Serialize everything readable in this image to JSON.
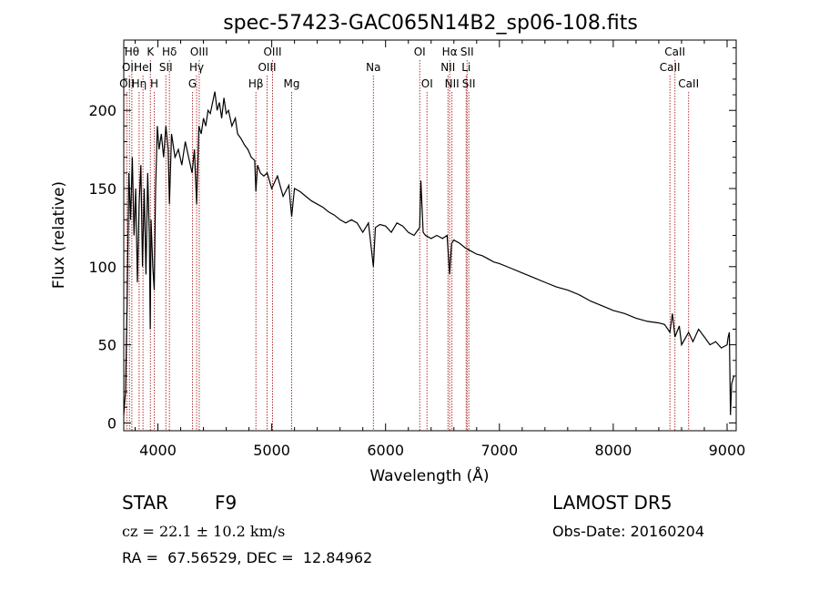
{
  "chart_data": {
    "type": "line",
    "title": "spec-57423-GAC065N14B2_sp06-108.fits",
    "xlabel": "Wavelength (Å)",
    "ylabel": "Flux (relative)",
    "xlim": [
      3700,
      9080
    ],
    "ylim": [
      -5,
      245
    ],
    "xticks": [
      4000,
      5000,
      6000,
      7000,
      8000,
      9000
    ],
    "yticks": [
      0,
      50,
      100,
      150,
      200
    ],
    "grid": false,
    "line_color": "#000000",
    "marker_line_color": "#b03030",
    "series": [
      {
        "x": [
          3700,
          3715,
          3730,
          3745,
          3760,
          3775,
          3790,
          3805,
          3820,
          3835,
          3850,
          3865,
          3880,
          3895,
          3910,
          3925,
          3933,
          3940,
          3955,
          3968,
          3980,
          3995,
          4010,
          4030,
          4050,
          4070,
          4090,
          4101,
          4120,
          4150,
          4180,
          4210,
          4240,
          4270,
          4300,
          4320,
          4340,
          4360,
          4380,
          4400,
          4420,
          4440,
          4460,
          4480,
          4500,
          4520,
          4540,
          4560,
          4580,
          4600,
          4620,
          4650,
          4680,
          4700,
          4730,
          4760,
          4790,
          4820,
          4850,
          4861,
          4875,
          4900,
          4930,
          4960,
          5000,
          5050,
          5100,
          5150,
          5175,
          5200,
          5250,
          5300,
          5350,
          5400,
          5450,
          5500,
          5550,
          5600,
          5650,
          5700,
          5750,
          5800,
          5850,
          5893,
          5910,
          5950,
          6000,
          6050,
          6100,
          6150,
          6200,
          6250,
          6300,
          6310,
          6330,
          6350,
          6400,
          6450,
          6500,
          6540,
          6563,
          6580,
          6600,
          6650,
          6700,
          6750,
          6800,
          6850,
          6900,
          6950,
          7000,
          7100,
          7200,
          7300,
          7400,
          7500,
          7600,
          7700,
          7800,
          7900,
          8000,
          8100,
          8200,
          8300,
          8400,
          8450,
          8498,
          8520,
          8542,
          8580,
          8600,
          8662,
          8700,
          8750,
          8800,
          8850,
          8900,
          8950,
          9000,
          9010,
          9020,
          9030,
          9040,
          9060
        ],
        "y": [
          5,
          20,
          80,
          160,
          130,
          170,
          120,
          150,
          90,
          140,
          165,
          100,
          150,
          95,
          160,
          120,
          60,
          130,
          100,
          85,
          150,
          190,
          175,
          185,
          170,
          190,
          175,
          140,
          185,
          170,
          175,
          165,
          180,
          170,
          160,
          175,
          140,
          190,
          185,
          195,
          190,
          200,
          198,
          205,
          212,
          200,
          205,
          195,
          208,
          198,
          200,
          190,
          195,
          185,
          182,
          178,
          175,
          170,
          168,
          148,
          165,
          160,
          158,
          160,
          150,
          158,
          145,
          152,
          132,
          150,
          148,
          145,
          142,
          140,
          138,
          135,
          133,
          130,
          128,
          130,
          128,
          122,
          128,
          100,
          125,
          127,
          126,
          122,
          128,
          126,
          122,
          120,
          125,
          155,
          122,
          120,
          118,
          120,
          118,
          120,
          95,
          115,
          117,
          115,
          112,
          110,
          108,
          107,
          105,
          103,
          102,
          99,
          96,
          93,
          90,
          87,
          85,
          82,
          78,
          75,
          72,
          70,
          67,
          65,
          64,
          63,
          58,
          70,
          55,
          62,
          50,
          58,
          52,
          60,
          55,
          50,
          52,
          48,
          50,
          55,
          58,
          5,
          25,
          30
        ]
      }
    ],
    "line_markers": [
      {
        "wavelength": 3727,
        "label": "OII",
        "row": 3
      },
      {
        "wavelength": 3750,
        "label": "OII",
        "row": 2
      },
      {
        "wavelength": 3771,
        "label": "Hθ",
        "row": 1
      },
      {
        "wavelength": 3835,
        "label": "Hη",
        "row": 3
      },
      {
        "wavelength": 3869,
        "label": "HeI",
        "row": 2
      },
      {
        "wavelength": 3934,
        "label": "K",
        "row": 1
      },
      {
        "wavelength": 3968,
        "label": "H",
        "row": 3
      },
      {
        "wavelength": 4070,
        "label": "SII",
        "row": 2
      },
      {
        "wavelength": 4101,
        "label": "Hδ",
        "row": 1
      },
      {
        "wavelength": 4304,
        "label": "G",
        "row": 3
      },
      {
        "wavelength": 4340,
        "label": "Hγ",
        "row": 2
      },
      {
        "wavelength": 4363,
        "label": "OIII",
        "row": 1
      },
      {
        "wavelength": 4861,
        "label": "Hβ",
        "row": 3
      },
      {
        "wavelength": 4959,
        "label": "OIII",
        "row": 2
      },
      {
        "wavelength": 5007,
        "label": "OIII",
        "row": 1
      },
      {
        "wavelength": 5175,
        "label": "Mg",
        "row": 3
      },
      {
        "wavelength": 5893,
        "label": "Na",
        "row": 2
      },
      {
        "wavelength": 6300,
        "label": "OI",
        "row": 1
      },
      {
        "wavelength": 6364,
        "label": "OI",
        "row": 3
      },
      {
        "wavelength": 6548,
        "label": "NII",
        "row": 2
      },
      {
        "wavelength": 6563,
        "label": "Hα",
        "row": 1
      },
      {
        "wavelength": 6583,
        "label": "NII",
        "row": 3
      },
      {
        "wavelength": 6708,
        "label": "Li",
        "row": 2
      },
      {
        "wavelength": 6716,
        "label": "SII",
        "row": 1
      },
      {
        "wavelength": 6731,
        "label": "SII",
        "row": 3
      },
      {
        "wavelength": 8498,
        "label": "CaII",
        "row": 2
      },
      {
        "wavelength": 8542,
        "label": "CaII",
        "row": 1
      },
      {
        "wavelength": 8662,
        "label": "CaII",
        "row": 3
      }
    ]
  },
  "info": {
    "object_class": "STAR",
    "subclass": "F9",
    "survey": "LAMOST DR5",
    "redshift": "cz = 22.1 ± 10.2 km/s",
    "obs_date": "Obs-Date: 20160204",
    "coords": "RA =  67.56529, DEC =  12.84962"
  }
}
